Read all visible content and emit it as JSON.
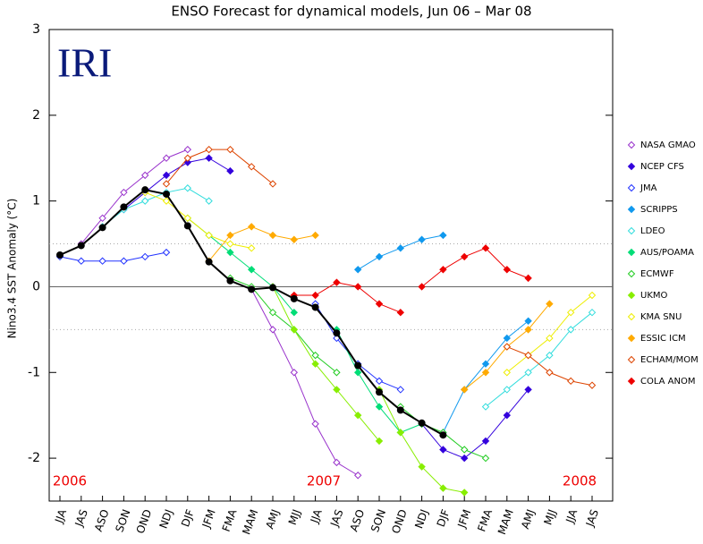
{
  "chart_data": {
    "type": "plume",
    "title": "ENSO Forecast for dynamical models, Jun 06 – Mar 08",
    "ylabel": "Nino3.4 SST Anomaly (°C)",
    "logo": "IRI",
    "year_labels": [
      "2006",
      "2007",
      "2008"
    ],
    "categories": [
      "JJA",
      "JAS",
      "ASO",
      "SON",
      "OND",
      "NDJ",
      "DJF",
      "JFM",
      "FMA",
      "MAM",
      "AMJ",
      "MJJ",
      "JJA",
      "JAS",
      "ASO",
      "SON",
      "OND",
      "NDJ",
      "DJF",
      "JFM",
      "FMA",
      "MAM",
      "AMJ",
      "MJJ",
      "JJA",
      "JAS"
    ],
    "ylim": [
      -2.5,
      3
    ],
    "yticks": [
      -2,
      -1,
      0,
      1,
      2,
      3
    ],
    "dotted_lines": [
      -0.5,
      0.5
    ],
    "observed": {
      "color": "#000000",
      "values": [
        0.37,
        0.48,
        0.69,
        0.93,
        1.13,
        1.08,
        0.71,
        0.29,
        0.07,
        -0.03,
        -0.01,
        -0.14,
        -0.24,
        -0.54,
        -0.92,
        -1.23,
        -1.44,
        -1.59,
        -1.73,
        null,
        null,
        null,
        null,
        null,
        null,
        null
      ]
    },
    "series": [
      {
        "name": "NASA GMAO",
        "color": "#9933cc",
        "filled": false,
        "plumes": [
          [
            null,
            null,
            null,
            null,
            null,
            null,
            null,
            null,
            null,
            -0.03,
            -0.5,
            -1.0,
            -1.6,
            -2.05,
            -2.2,
            null,
            null,
            null,
            null,
            null,
            null,
            null,
            null,
            null,
            null,
            null
          ],
          [
            null,
            0.5,
            0.8,
            1.1,
            1.3,
            1.5,
            1.6,
            null,
            null,
            null,
            null,
            null,
            null,
            null,
            null,
            null,
            null,
            null,
            null,
            null,
            null,
            null,
            null,
            null,
            null,
            null
          ]
        ]
      },
      {
        "name": "NCEP CFS",
        "color": "#3300dd",
        "filled": true,
        "plumes": [
          [
            null,
            null,
            null,
            0.9,
            1.1,
            1.3,
            1.45,
            1.5,
            1.35,
            null,
            null,
            null,
            null,
            null,
            null,
            null,
            null,
            null,
            null,
            null,
            null,
            null,
            null,
            null,
            null,
            null
          ],
          [
            null,
            null,
            null,
            null,
            null,
            null,
            null,
            null,
            null,
            null,
            null,
            null,
            null,
            null,
            null,
            null,
            null,
            -1.6,
            -1.9,
            -2.0,
            -1.8,
            -1.5,
            -1.2,
            null,
            null,
            null
          ]
        ]
      },
      {
        "name": "JMA",
        "color": "#2233ff",
        "filled": false,
        "plumes": [
          [
            0.35,
            0.3,
            0.3,
            0.3,
            0.35,
            0.4,
            null,
            null,
            null,
            null,
            null,
            null,
            null,
            null,
            null,
            null,
            null,
            null,
            null,
            null,
            null,
            null,
            null,
            null,
            null,
            null
          ],
          [
            null,
            null,
            null,
            null,
            null,
            null,
            null,
            null,
            null,
            null,
            null,
            null,
            -0.2,
            -0.6,
            -0.9,
            -1.1,
            -1.2,
            null,
            null,
            null,
            null,
            null,
            null,
            null,
            null,
            null
          ]
        ]
      },
      {
        "name": "SCRIPPS",
        "color": "#1199ee",
        "filled": true,
        "plumes": [
          [
            null,
            null,
            null,
            null,
            null,
            null,
            null,
            null,
            null,
            null,
            null,
            null,
            null,
            null,
            0.2,
            0.35,
            0.45,
            0.55,
            0.6,
            null,
            null,
            null,
            null,
            null,
            null,
            null
          ],
          [
            null,
            null,
            null,
            null,
            null,
            null,
            null,
            null,
            null,
            null,
            null,
            null,
            null,
            null,
            null,
            null,
            null,
            null,
            -1.7,
            -1.2,
            -0.9,
            -0.6,
            -0.4,
            null,
            null,
            null
          ]
        ]
      },
      {
        "name": "LDEO",
        "color": "#33dddd",
        "filled": false,
        "plumes": [
          [
            null,
            null,
            0.7,
            0.9,
            1.0,
            1.1,
            1.15,
            1.0,
            null,
            null,
            null,
            null,
            null,
            null,
            null,
            null,
            null,
            null,
            null,
            null,
            null,
            null,
            null,
            null,
            null,
            null
          ],
          [
            null,
            null,
            null,
            null,
            null,
            null,
            null,
            null,
            null,
            null,
            null,
            null,
            null,
            null,
            null,
            null,
            null,
            null,
            null,
            null,
            -1.4,
            -1.2,
            -1.0,
            -0.8,
            -0.5,
            -0.3
          ]
        ]
      },
      {
        "name": "AUS/POAMA",
        "color": "#00dd77",
        "filled": true,
        "plumes": [
          [
            null,
            null,
            null,
            null,
            null,
            null,
            0.8,
            0.6,
            0.4,
            0.2,
            0.0,
            -0.3,
            null,
            null,
            null,
            null,
            null,
            null,
            null,
            null,
            null,
            null,
            null,
            null,
            null,
            null
          ],
          [
            null,
            null,
            null,
            null,
            null,
            null,
            null,
            null,
            null,
            null,
            null,
            null,
            null,
            -0.5,
            -1.0,
            -1.4,
            -1.7,
            -1.6,
            null,
            null,
            null,
            null,
            null,
            null,
            null,
            null
          ]
        ]
      },
      {
        "name": "ECMWF",
        "color": "#22cc22",
        "filled": false,
        "plumes": [
          [
            null,
            null,
            null,
            null,
            null,
            null,
            null,
            null,
            0.1,
            0.0,
            -0.3,
            -0.5,
            -0.8,
            -1.0,
            null,
            null,
            null,
            null,
            null,
            null,
            null,
            null,
            null,
            null,
            null,
            null
          ],
          [
            null,
            null,
            null,
            null,
            null,
            null,
            null,
            null,
            null,
            null,
            null,
            null,
            null,
            null,
            null,
            null,
            -1.4,
            -1.6,
            -1.7,
            -1.9,
            -2.0,
            null,
            null,
            null,
            null,
            null
          ]
        ]
      },
      {
        "name": "UKMO",
        "color": "#88ee00",
        "filled": true,
        "plumes": [
          [
            null,
            null,
            null,
            null,
            null,
            null,
            null,
            null,
            null,
            null,
            0.0,
            -0.5,
            -0.9,
            -1.2,
            -1.5,
            -1.8,
            null,
            null,
            null,
            null,
            null,
            null,
            null,
            null,
            null,
            null
          ],
          [
            null,
            null,
            null,
            null,
            null,
            null,
            null,
            null,
            null,
            null,
            null,
            null,
            null,
            null,
            null,
            -1.2,
            -1.7,
            -2.1,
            -2.35,
            -2.4,
            null,
            null,
            null,
            null,
            null,
            null
          ]
        ]
      },
      {
        "name": "KMA SNU",
        "color": "#eeee00",
        "filled": false,
        "plumes": [
          [
            null,
            null,
            null,
            null,
            1.1,
            1.0,
            0.8,
            0.6,
            0.5,
            0.45,
            null,
            null,
            null,
            null,
            null,
            null,
            null,
            null,
            null,
            null,
            null,
            null,
            null,
            null,
            null,
            null
          ],
          [
            null,
            null,
            null,
            null,
            null,
            null,
            null,
            null,
            null,
            null,
            null,
            null,
            null,
            null,
            null,
            null,
            null,
            null,
            null,
            null,
            null,
            -1.0,
            -0.8,
            -0.6,
            -0.3,
            -0.1
          ]
        ]
      },
      {
        "name": "ESSIC ICM",
        "color": "#ffaa00",
        "filled": true,
        "plumes": [
          [
            null,
            null,
            null,
            null,
            null,
            null,
            null,
            0.3,
            0.6,
            0.7,
            0.6,
            0.55,
            0.6,
            null,
            null,
            null,
            null,
            null,
            null,
            null,
            null,
            null,
            null,
            null,
            null,
            null
          ],
          [
            null,
            null,
            null,
            null,
            null,
            null,
            null,
            null,
            null,
            null,
            null,
            null,
            null,
            null,
            null,
            null,
            null,
            null,
            null,
            -1.2,
            -1.0,
            -0.7,
            -0.5,
            -0.2,
            null,
            null
          ]
        ]
      },
      {
        "name": "ECHAM/MOM",
        "color": "#dd4400",
        "filled": false,
        "plumes": [
          [
            null,
            null,
            null,
            null,
            null,
            1.2,
            1.5,
            1.6,
            1.6,
            1.4,
            1.2,
            null,
            null,
            null,
            null,
            null,
            null,
            null,
            null,
            null,
            null,
            null,
            null,
            null,
            null,
            null
          ],
          [
            null,
            null,
            null,
            null,
            null,
            null,
            null,
            null,
            null,
            null,
            null,
            null,
            null,
            null,
            null,
            null,
            null,
            null,
            null,
            null,
            null,
            -0.7,
            -0.8,
            -1.0,
            -1.1,
            -1.15
          ]
        ]
      },
      {
        "name": "COLA ANOM",
        "color": "#ee0000",
        "filled": true,
        "plumes": [
          [
            null,
            null,
            null,
            null,
            null,
            null,
            null,
            null,
            null,
            null,
            null,
            -0.1,
            -0.1,
            0.05,
            0.0,
            -0.2,
            -0.3,
            null,
            null,
            null,
            null,
            null,
            null,
            null,
            null,
            null
          ],
          [
            null,
            null,
            null,
            null,
            null,
            null,
            null,
            null,
            null,
            null,
            null,
            null,
            null,
            null,
            null,
            null,
            null,
            0.0,
            0.2,
            0.35,
            0.45,
            0.2,
            0.1,
            null,
            null,
            null
          ]
        ]
      }
    ]
  }
}
